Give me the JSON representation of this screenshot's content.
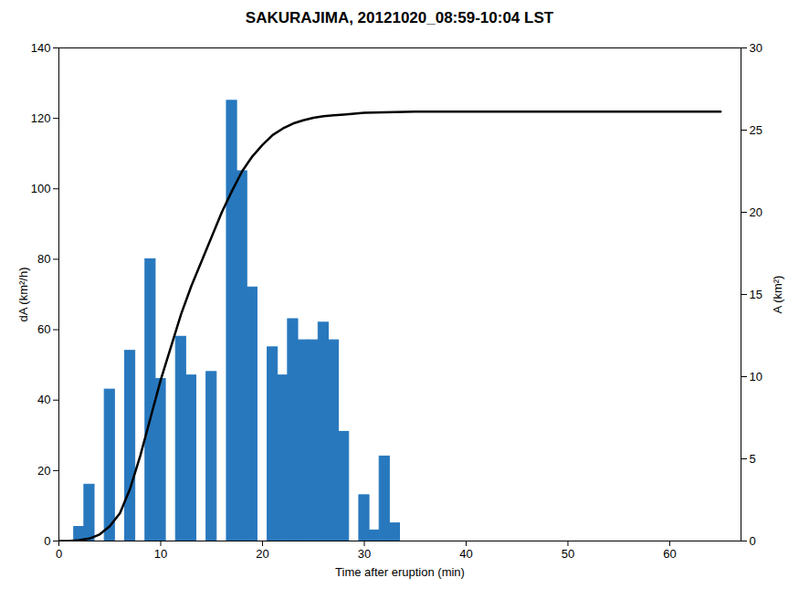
{
  "chart_data": {
    "type": "bar",
    "title": "SAKURAJIMA, 20121020_08:59-10:04 LST",
    "xlabel": "Time after eruption (min)",
    "ylabel": "dA (km²/h)",
    "y2label": "A (km²)",
    "xlim": [
      0,
      67
    ],
    "xticks": [
      0,
      10,
      20,
      30,
      40,
      50,
      60
    ],
    "ylim": [
      0,
      140
    ],
    "yticks": [
      0,
      20,
      40,
      60,
      80,
      100,
      120,
      140
    ],
    "y2lim": [
      0,
      30
    ],
    "y2ticks": [
      0,
      5,
      10,
      15,
      20,
      25,
      30
    ],
    "grid": false,
    "series": [
      {
        "type": "bar",
        "color": "#2878BE",
        "x": [
          2,
          3,
          5,
          7,
          9,
          10,
          12,
          13,
          15,
          17,
          18,
          19,
          21,
          22,
          23,
          24,
          25,
          26,
          27,
          28,
          30,
          31,
          32,
          33,
          34,
          35,
          36,
          37,
          38,
          48,
          49,
          65
        ],
        "values": [
          4,
          16,
          43,
          54,
          80,
          46,
          58,
          47,
          48,
          125,
          105,
          72,
          55,
          47,
          63,
          57,
          57,
          62,
          57,
          31,
          13,
          3,
          24,
          5,
          0,
          0,
          0,
          0,
          0,
          0,
          0,
          0
        ]
      },
      {
        "type": "line",
        "color": "#000000",
        "axis": "y2",
        "x": [
          0,
          1,
          2,
          3,
          4,
          5,
          6,
          7,
          8,
          9,
          10,
          11,
          12,
          13,
          14,
          15,
          16,
          17,
          18,
          19,
          20,
          21,
          22,
          23,
          24,
          25,
          26,
          27,
          28,
          29,
          30,
          31,
          32,
          33,
          34,
          35,
          36,
          40,
          45,
          50,
          55,
          60,
          65
        ],
        "values": [
          0,
          0,
          0.05,
          0.15,
          0.4,
          0.9,
          1.7,
          3.2,
          5.2,
          7.5,
          9.8,
          11.8,
          13.8,
          15.5,
          17.0,
          18.5,
          20.0,
          21.3,
          22.5,
          23.4,
          24.1,
          24.7,
          25.1,
          25.4,
          25.6,
          25.75,
          25.85,
          25.9,
          25.95,
          26.0,
          26.05,
          26.07,
          26.09,
          26.1,
          26.11,
          26.12,
          26.13,
          26.13,
          26.13,
          26.13,
          26.13,
          26.13,
          26.13
        ]
      }
    ]
  }
}
